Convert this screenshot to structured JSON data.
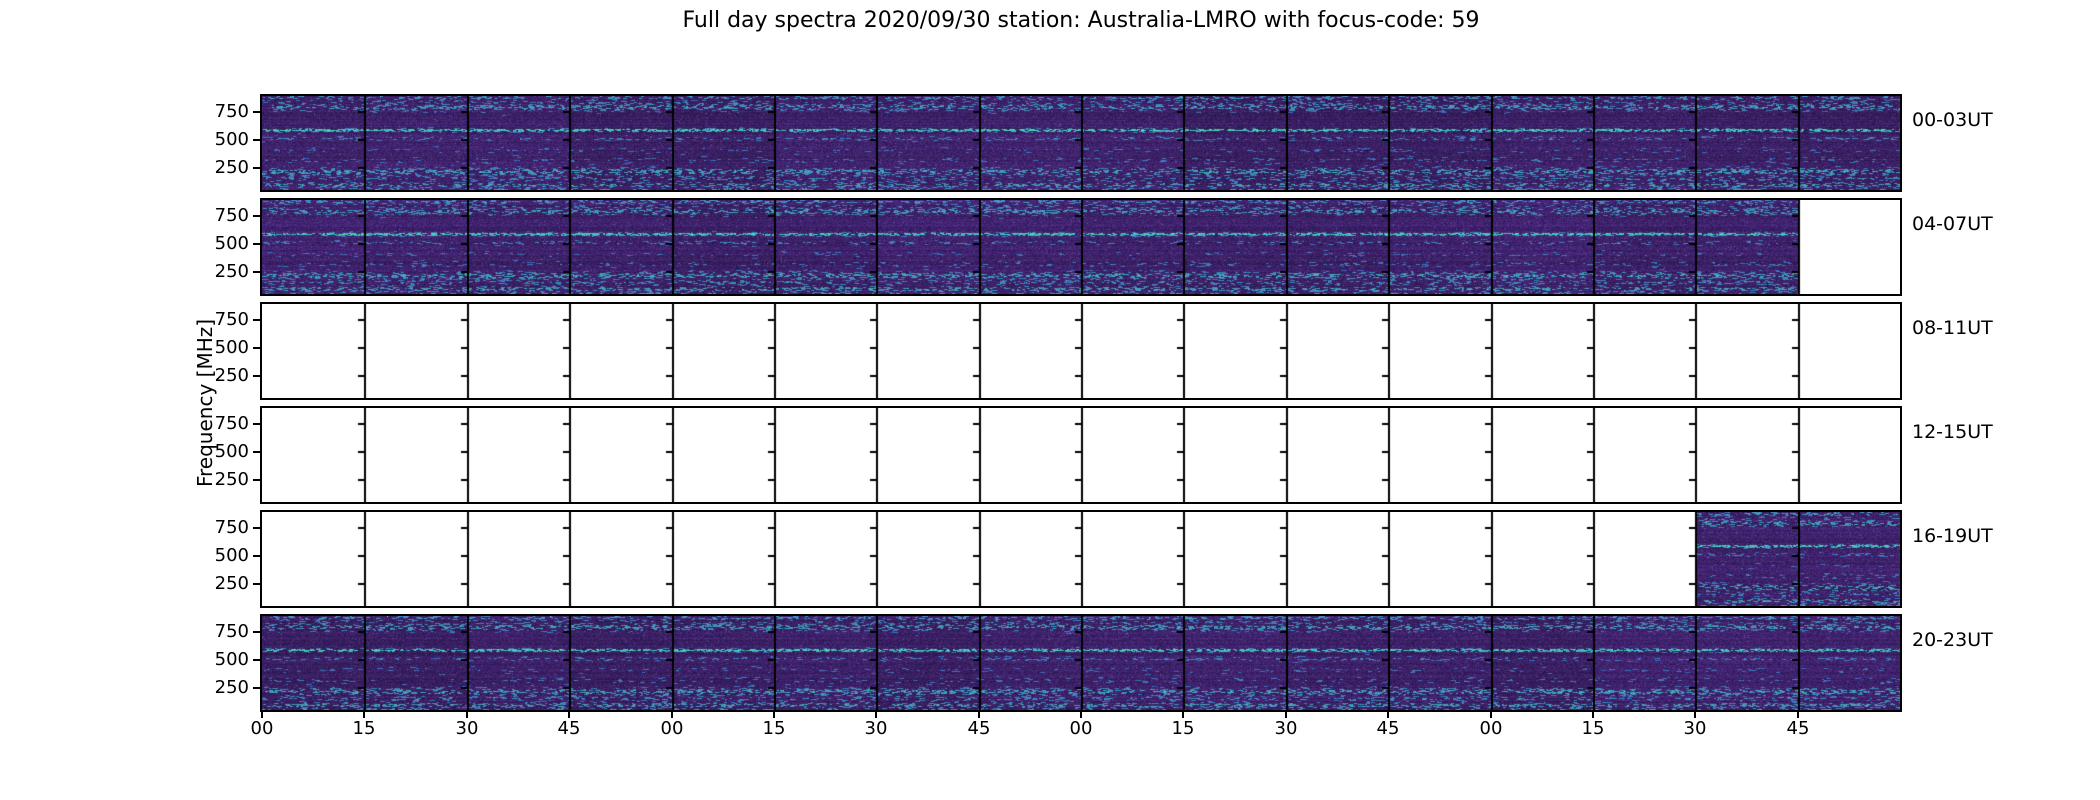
{
  "title": "Full day spectra 2020/09/30 station: Australia-LMRO with focus-code: 59",
  "ylabel": "Frequency [MHz]",
  "y_tick_labels": [
    "750",
    "500",
    "250"
  ],
  "x_tick_labels": [
    "00",
    "15",
    "30",
    "45",
    "00",
    "15",
    "30",
    "45",
    "00",
    "15",
    "30",
    "45",
    "00",
    "15",
    "30",
    "45"
  ],
  "panels": [
    {
      "label": "00-03UT",
      "data_segments": [
        [
          0,
          16
        ]
      ]
    },
    {
      "label": "04-07UT",
      "data_segments": [
        [
          0,
          15
        ]
      ]
    },
    {
      "label": "08-11UT",
      "data_segments": []
    },
    {
      "label": "12-15UT",
      "data_segments": []
    },
    {
      "label": "16-19UT",
      "data_segments": [
        [
          14,
          16
        ]
      ]
    },
    {
      "label": "20-23UT",
      "data_segments": [
        [
          0,
          16
        ]
      ]
    }
  ],
  "colors": {
    "background": "#ffffff",
    "frame": "#000000",
    "text": "#000000",
    "spectrogram_base_purple": "#3a2060",
    "spectrogram_speckle_teal": "#3aa8b4",
    "spectrogram_bright_line": "#46c0b0",
    "rare_hot_pixel": "#e6cd46"
  },
  "chart_data": {
    "type": "heatmap",
    "subtype": "radio-spectrogram-daily-grid",
    "title": "Full day spectra 2020/09/30 station: Australia-LMRO with focus-code: 59",
    "ylabel": "Frequency [MHz]",
    "y_ticks_mhz": [
      750,
      500,
      250
    ],
    "x_tick_minute_labels": [
      "00",
      "15",
      "30",
      "45",
      "00",
      "15",
      "30",
      "45",
      "00",
      "15",
      "30",
      "45",
      "00",
      "15",
      "30",
      "45"
    ],
    "segments_per_row": 16,
    "segment_duration_minutes": 15,
    "hours_per_row": 4,
    "legend": "none",
    "grid": "segment boundaries drawn as vertical black lines with small frequency tick marks",
    "colormap": "viridis (dark purple background with teal/cyan emission speckles)",
    "rows": [
      {
        "label": "00-03UT",
        "coverage": "full",
        "segments_with_data": [
          0,
          1,
          2,
          3,
          4,
          5,
          6,
          7,
          8,
          9,
          10,
          11,
          12,
          13,
          14,
          15
        ],
        "data_extent_ut": "00:00-04:00"
      },
      {
        "label": "04-07UT",
        "coverage": "partial",
        "segments_with_data": [
          0,
          1,
          2,
          3,
          4,
          5,
          6,
          7,
          8,
          9,
          10,
          11,
          12,
          13,
          14
        ],
        "data_extent_ut": "04:00-07:45"
      },
      {
        "label": "08-11UT",
        "coverage": "none",
        "segments_with_data": [],
        "data_extent_ut": ""
      },
      {
        "label": "12-15UT",
        "coverage": "none",
        "segments_with_data": [],
        "data_extent_ut": ""
      },
      {
        "label": "16-19UT",
        "coverage": "partial",
        "segments_with_data": [
          14,
          15
        ],
        "data_extent_ut": "19:30-20:00"
      },
      {
        "label": "20-23UT",
        "coverage": "full",
        "segments_with_data": [
          0,
          1,
          2,
          3,
          4,
          5,
          6,
          7,
          8,
          9,
          10,
          11,
          12,
          13,
          14,
          15
        ],
        "data_extent_ut": "20:00-24:00"
      }
    ],
    "estimated_persistent_signal_bands_mhz": [
      810,
      780,
      570,
      520,
      200,
      110
    ],
    "notes": "Dark purple background noise with horizontal dotted teal interference/emission lines; brightest continuous line near 570 MHz; dense speckle bands near 200 MHz and 110 MHz; empty (white) sub-panels indicate missing data."
  }
}
